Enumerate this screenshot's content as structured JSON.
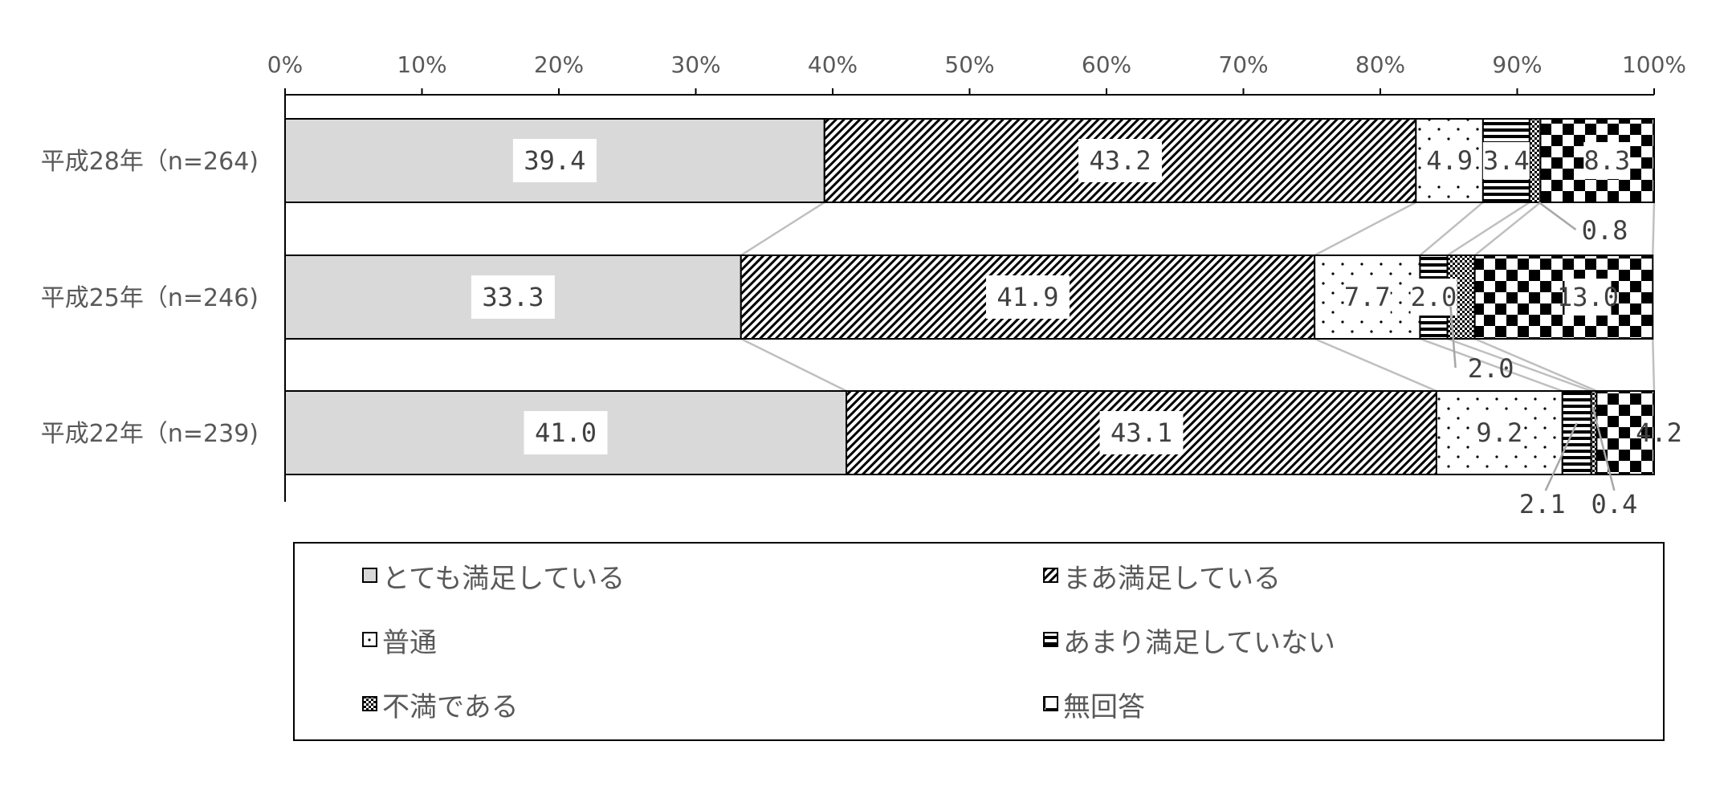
{
  "chart_data": {
    "type": "bar",
    "orientation": "horizontal",
    "stacked": "percent",
    "categories": [
      "平成28年（n=264)",
      "平成25年（n=246)",
      "平成22年（n=239)"
    ],
    "x_ticks": [
      "0%",
      "10%",
      "20%",
      "30%",
      "40%",
      "50%",
      "60%",
      "70%",
      "80%",
      "90%",
      "100%"
    ],
    "xlim": [
      0,
      100
    ],
    "series": [
      {
        "name": "とても満足している",
        "values": [
          39.4,
          33.3,
          41.0
        ],
        "labels": [
          "39.4",
          "33.3",
          "41.0"
        ],
        "pattern": "solid-gray",
        "color": "#d9d9d9"
      },
      {
        "name": "まあ満足している",
        "values": [
          43.2,
          41.9,
          43.1
        ],
        "labels": [
          "43.2",
          "41.9",
          "43.1"
        ],
        "pattern": "diagonal-hatch",
        "color": "#000000"
      },
      {
        "name": "普通",
        "values": [
          4.9,
          7.7,
          9.2
        ],
        "labels": [
          "4.9",
          "7.7",
          "9.2"
        ],
        "pattern": "dots",
        "color": "#000000"
      },
      {
        "name": "あまり満足していない",
        "values": [
          3.4,
          2.0,
          2.1
        ],
        "labels": [
          "3.4",
          "2.0",
          "2.1"
        ],
        "pattern": "horizontal-stripes",
        "color": "#000000"
      },
      {
        "name": "不満である",
        "values": [
          0.8,
          2.0,
          0.4
        ],
        "labels": [
          "0.8",
          "2.0",
          "0.4"
        ],
        "pattern": "crosshatch",
        "color": "#000000"
      },
      {
        "name": "無回答",
        "values": [
          8.3,
          13.0,
          4.2
        ],
        "labels": [
          "8.3",
          "13.0",
          "4.2"
        ],
        "pattern": "checkerboard",
        "color": "#000000"
      }
    ],
    "series_lines": true,
    "legend_position": "bottom",
    "grid": false
  }
}
